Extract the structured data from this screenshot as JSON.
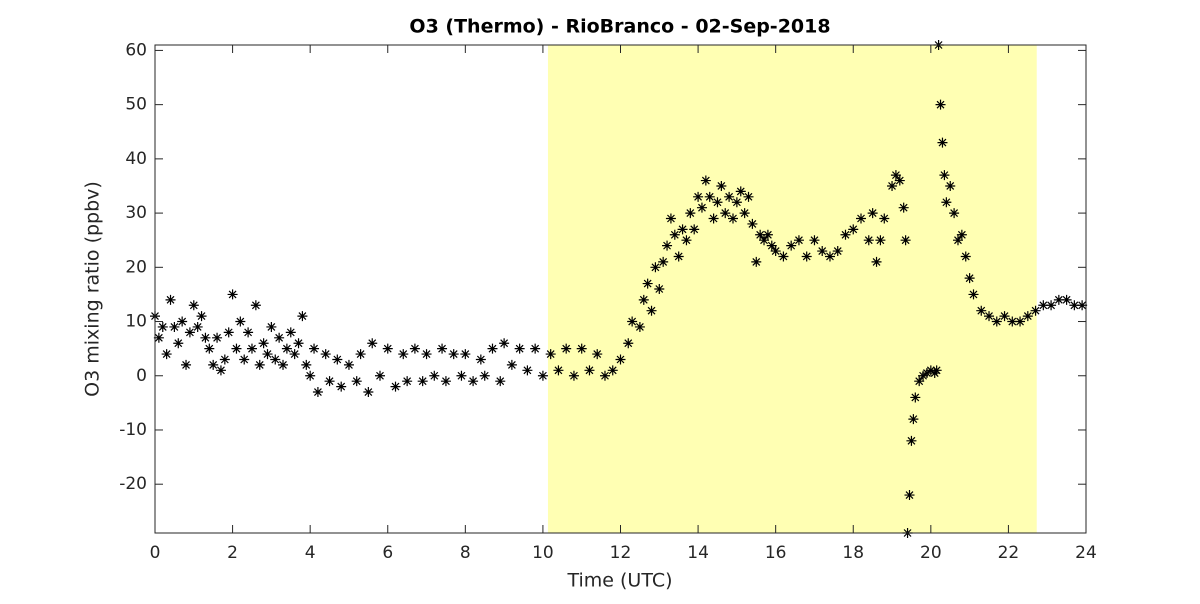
{
  "chart_data": {
    "type": "scatter",
    "title": "O3 (Thermo) - RioBranco - 02-Sep-2018",
    "x_label": "Time (UTC)",
    "y_label": "O3 mixing ratio (ppbv)",
    "shaded_span": [
      10.13,
      22.73
    ],
    "shade_color": "#ffffb3",
    "color": "#000000",
    "xlim": [
      0,
      24
    ],
    "xticks": [
      0,
      2,
      4,
      6,
      8,
      10,
      12,
      14,
      16,
      18,
      20,
      22,
      24
    ],
    "ylim": [
      -29,
      61
    ],
    "yticks": [
      -20,
      -10,
      0,
      10,
      20,
      30,
      40,
      50,
      60
    ],
    "x": [
      0.0,
      0.1,
      0.2,
      0.3,
      0.4,
      0.5,
      0.6,
      0.7,
      0.8,
      0.9,
      1.0,
      1.1,
      1.2,
      1.3,
      1.4,
      1.5,
      1.6,
      1.7,
      1.8,
      1.9,
      2.0,
      2.1,
      2.2,
      2.3,
      2.4,
      2.5,
      2.6,
      2.7,
      2.8,
      2.9,
      3.0,
      3.1,
      3.2,
      3.3,
      3.4,
      3.5,
      3.6,
      3.7,
      3.8,
      3.9,
      4.0,
      4.1,
      4.2,
      4.4,
      4.5,
      4.7,
      4.8,
      5.0,
      5.2,
      5.3,
      5.5,
      5.6,
      5.8,
      6.0,
      6.2,
      6.4,
      6.5,
      6.7,
      6.9,
      7.0,
      7.2,
      7.4,
      7.5,
      7.7,
      7.9,
      8.0,
      8.2,
      8.4,
      8.5,
      8.7,
      8.9,
      9.0,
      9.2,
      9.4,
      9.6,
      9.8,
      10.0,
      10.2,
      10.4,
      10.6,
      10.8,
      11.0,
      11.2,
      11.4,
      11.6,
      11.8,
      12.0,
      12.2,
      12.3,
      12.5,
      12.6,
      12.7,
      12.8,
      12.9,
      13.0,
      13.1,
      13.2,
      13.3,
      13.4,
      13.5,
      13.6,
      13.7,
      13.8,
      13.9,
      14.0,
      14.1,
      14.2,
      14.3,
      14.4,
      14.5,
      14.6,
      14.7,
      14.8,
      14.9,
      15.0,
      15.1,
      15.2,
      15.3,
      15.4,
      15.5,
      15.6,
      15.7,
      15.8,
      15.9,
      16.0,
      16.2,
      16.4,
      16.6,
      16.8,
      17.0,
      17.2,
      17.4,
      17.6,
      17.8,
      18.0,
      18.2,
      18.4,
      18.5,
      18.6,
      18.7,
      18.8,
      19.0,
      19.1,
      19.2,
      19.3,
      19.35,
      19.4,
      19.45,
      19.5,
      19.55,
      19.6,
      19.7,
      19.8,
      19.9,
      20.0,
      20.1,
      20.15,
      20.2,
      20.25,
      20.3,
      20.35,
      20.4,
      20.5,
      20.6,
      20.7,
      20.8,
      20.9,
      21.0,
      21.1,
      21.3,
      21.5,
      21.7,
      21.9,
      22.1,
      22.3,
      22.5,
      22.7,
      22.9,
      23.1,
      23.3,
      23.5,
      23.7,
      23.9
    ],
    "values": [
      11,
      7,
      9,
      4,
      14,
      9,
      6,
      10,
      2,
      8,
      13,
      9,
      11,
      7,
      5,
      2,
      7,
      1,
      3,
      8,
      15,
      5,
      10,
      3,
      8,
      5,
      13,
      2,
      6,
      4,
      9,
      3,
      7,
      2,
      5,
      8,
      4,
      6,
      11,
      2,
      0,
      5,
      -3,
      4,
      -1,
      3,
      -2,
      2,
      -1,
      4,
      -3,
      6,
      0,
      5,
      -2,
      4,
      -1,
      5,
      -1,
      4,
      0,
      5,
      -1,
      4,
      0,
      4,
      -1,
      3,
      0,
      5,
      -1,
      6,
      2,
      5,
      1,
      5,
      0,
      4,
      1,
      5,
      0,
      5,
      1,
      4,
      0,
      1,
      3,
      6,
      10,
      9,
      14,
      17,
      12,
      20,
      16,
      21,
      24,
      29,
      26,
      22,
      27,
      25,
      30,
      27,
      33,
      31,
      36,
      33,
      29,
      32,
      35,
      30,
      33,
      29,
      32,
      34,
      30,
      33,
      28,
      21,
      26,
      25,
      26,
      24,
      23,
      22,
      24,
      25,
      22,
      25,
      23,
      22,
      23,
      26,
      27,
      29,
      25,
      30,
      21,
      25,
      29,
      35,
      37,
      36,
      31,
      25,
      -29,
      -22,
      -12,
      -8,
      -4,
      -1,
      0,
      0.5,
      1,
      0.5,
      1,
      61,
      50,
      43,
      37,
      32,
      35,
      30,
      25,
      26,
      22,
      18,
      15,
      12,
      11,
      10,
      11,
      10,
      10,
      11,
      12,
      13,
      13,
      14,
      14,
      13,
      13
    ]
  }
}
